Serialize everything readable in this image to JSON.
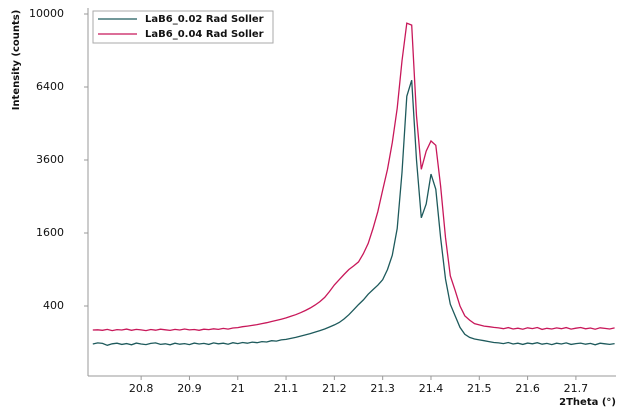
{
  "chart_data": {
    "type": "line",
    "y_label": "Intensity (counts)",
    "x_label": "2Theta (°)",
    "scale": "sqrt",
    "xlim": [
      20.69,
      21.783
    ],
    "ylim": [
      0,
      10000
    ],
    "xticks": [
      20.8,
      20.9,
      21.0,
      21.1,
      21.2,
      21.3,
      21.4,
      21.5,
      21.6,
      21.7
    ],
    "yticks": [
      400,
      1600,
      3600,
      6400,
      10000
    ],
    "legend": "top-left",
    "x": [
      20.7,
      20.71,
      20.72,
      20.73,
      20.74,
      20.75,
      20.76,
      20.77,
      20.78,
      20.79,
      20.8,
      20.81,
      20.82,
      20.83,
      20.84,
      20.85,
      20.86,
      20.87,
      20.88,
      20.89,
      20.9,
      20.91,
      20.92,
      20.93,
      20.94,
      20.95,
      20.96,
      20.97,
      20.98,
      20.99,
      21.0,
      21.01,
      21.02,
      21.03,
      21.04,
      21.05,
      21.06,
      21.07,
      21.08,
      21.09,
      21.1,
      21.11,
      21.12,
      21.13,
      21.14,
      21.15,
      21.16,
      21.17,
      21.18,
      21.19,
      21.2,
      21.21,
      21.22,
      21.23,
      21.24,
      21.25,
      21.26,
      21.27,
      21.28,
      21.29,
      21.3,
      21.31,
      21.32,
      21.33,
      21.34,
      21.35,
      21.36,
      21.37,
      21.38,
      21.39,
      21.4,
      21.41,
      21.42,
      21.43,
      21.44,
      21.45,
      21.46,
      21.47,
      21.48,
      21.49,
      21.5,
      21.51,
      21.52,
      21.53,
      21.54,
      21.55,
      21.56,
      21.57,
      21.58,
      21.59,
      21.6,
      21.61,
      21.62,
      21.63,
      21.64,
      21.65,
      21.66,
      21.67,
      21.68,
      21.69,
      21.7,
      21.71,
      21.72,
      21.73,
      21.74,
      21.75,
      21.76,
      21.77,
      21.78
    ],
    "series": [
      {
        "name": "LaB6_0.02 Rad Soller",
        "color": "#1e5a5c",
        "values": [
          92,
          98,
          95,
          85,
          93,
          96,
          90,
          94,
          88,
          97,
          92,
          89,
          95,
          98,
          90,
          93,
          88,
          96,
          91,
          94,
          89,
          97,
          92,
          95,
          90,
          98,
          93,
          96,
          91,
          99,
          94,
          100,
          96,
          102,
          99,
          105,
          103,
          110,
          108,
          115,
          118,
          124,
          130,
          138,
          146,
          155,
          165,
          176,
          188,
          203,
          220,
          240,
          270,
          310,
          360,
          415,
          470,
          540,
          600,
          660,
          740,
          900,
          1150,
          1700,
          3200,
          6000,
          6700,
          3600,
          1950,
          2300,
          3150,
          2700,
          1500,
          750,
          420,
          300,
          200,
          150,
          130,
          120,
          115,
          110,
          105,
          100,
          98,
          94,
          100,
          92,
          96,
          90,
          97,
          93,
          99,
          91,
          95,
          89,
          96,
          92,
          98,
          90,
          94,
          97,
          91,
          95,
          88,
          96,
          93,
          90,
          94
        ]
      },
      {
        "name": "LaB6_0.04 Rad Soller",
        "color": "#c8185a",
        "values": [
          180,
          182,
          178,
          185,
          176,
          183,
          180,
          187,
          178,
          185,
          181,
          176,
          184,
          179,
          186,
          182,
          177,
          185,
          180,
          188,
          181,
          184,
          178,
          186,
          183,
          189,
          185,
          192,
          187,
          195,
          198,
          205,
          210,
          216,
          222,
          230,
          238,
          248,
          258,
          268,
          280,
          295,
          310,
          330,
          352,
          378,
          410,
          450,
          500,
          575,
          665,
          740,
          820,
          900,
          960,
          1030,
          1180,
          1380,
          1700,
          2100,
          2680,
          3300,
          4200,
          5500,
          7600,
          9500,
          9400,
          5200,
          3300,
          3900,
          4250,
          4100,
          2800,
          1500,
          800,
          590,
          400,
          300,
          260,
          230,
          220,
          210,
          205,
          200,
          196,
          190,
          198,
          188,
          194,
          186,
          197,
          191,
          199,
          185,
          193,
          188,
          196,
          190,
          198,
          187,
          194,
          199,
          189,
          195,
          186,
          197,
          192,
          188,
          196
        ]
      }
    ]
  }
}
